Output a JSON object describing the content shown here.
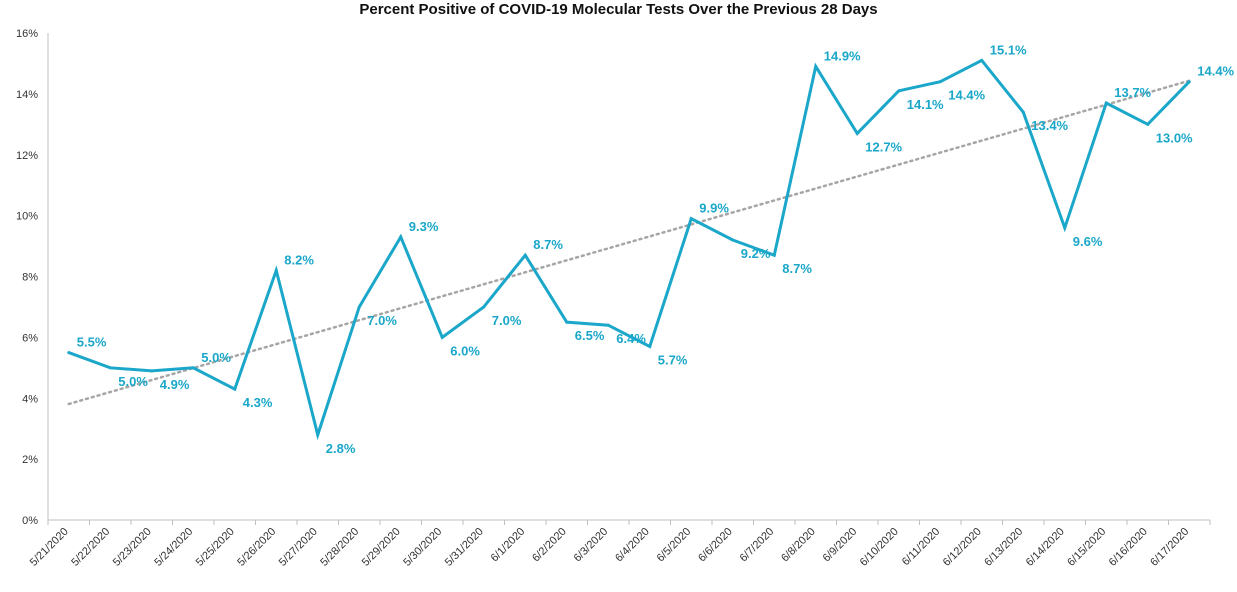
{
  "chart_data": {
    "type": "line",
    "title": "Percent Positive of COVID-19 Molecular Tests Over the Previous 28 Days",
    "xlabel": "",
    "ylabel": "",
    "ylim": [
      0,
      16
    ],
    "y_ticks": [
      "0%",
      "2%",
      "4%",
      "6%",
      "8%",
      "10%",
      "12%",
      "14%",
      "16%"
    ],
    "grid": false,
    "legend": "none",
    "categories": [
      "5/21/2020",
      "5/22/2020",
      "5/23/2020",
      "5/24/2020",
      "5/25/2020",
      "5/26/2020",
      "5/27/2020",
      "5/28/2020",
      "5/29/2020",
      "5/30/2020",
      "5/31/2020",
      "6/1/2020",
      "6/2/2020",
      "6/3/2020",
      "6/4/2020",
      "6/5/2020",
      "6/6/2020",
      "6/7/2020",
      "6/8/2020",
      "6/9/2020",
      "6/10/2020",
      "6/11/2020",
      "6/12/2020",
      "6/13/2020",
      "6/14/2020",
      "6/15/2020",
      "6/16/2020",
      "6/17/2020"
    ],
    "series": [
      {
        "values": [
          5.5,
          5.0,
          4.9,
          5.0,
          4.3,
          8.2,
          2.8,
          7.0,
          9.3,
          6.0,
          7.0,
          8.7,
          6.5,
          6.4,
          5.7,
          9.9,
          9.2,
          8.7,
          14.9,
          12.7,
          14.1,
          14.4,
          15.1,
          13.4,
          9.6,
          13.7,
          13.0,
          14.4
        ],
        "labels": [
          "5.5%",
          "5.0%",
          "4.9%",
          "5.0%",
          "4.3%",
          "8.2%",
          "2.8%",
          "7.0%",
          "9.3%",
          "6.0%",
          "7.0%",
          "8.7%",
          "6.5%",
          "6.4%",
          "5.7%",
          "9.9%",
          "9.2%",
          "8.7%",
          "14.9%",
          "12.7%",
          "14.1%",
          "14.4%",
          "15.1%",
          "13.4%",
          "9.6%",
          "13.7%",
          "13.0%",
          "14.4%"
        ],
        "color": "#1aa7c9"
      }
    ],
    "trendline": {
      "type": "linear",
      "style": "dotted",
      "color": "#a6a6a6"
    }
  }
}
